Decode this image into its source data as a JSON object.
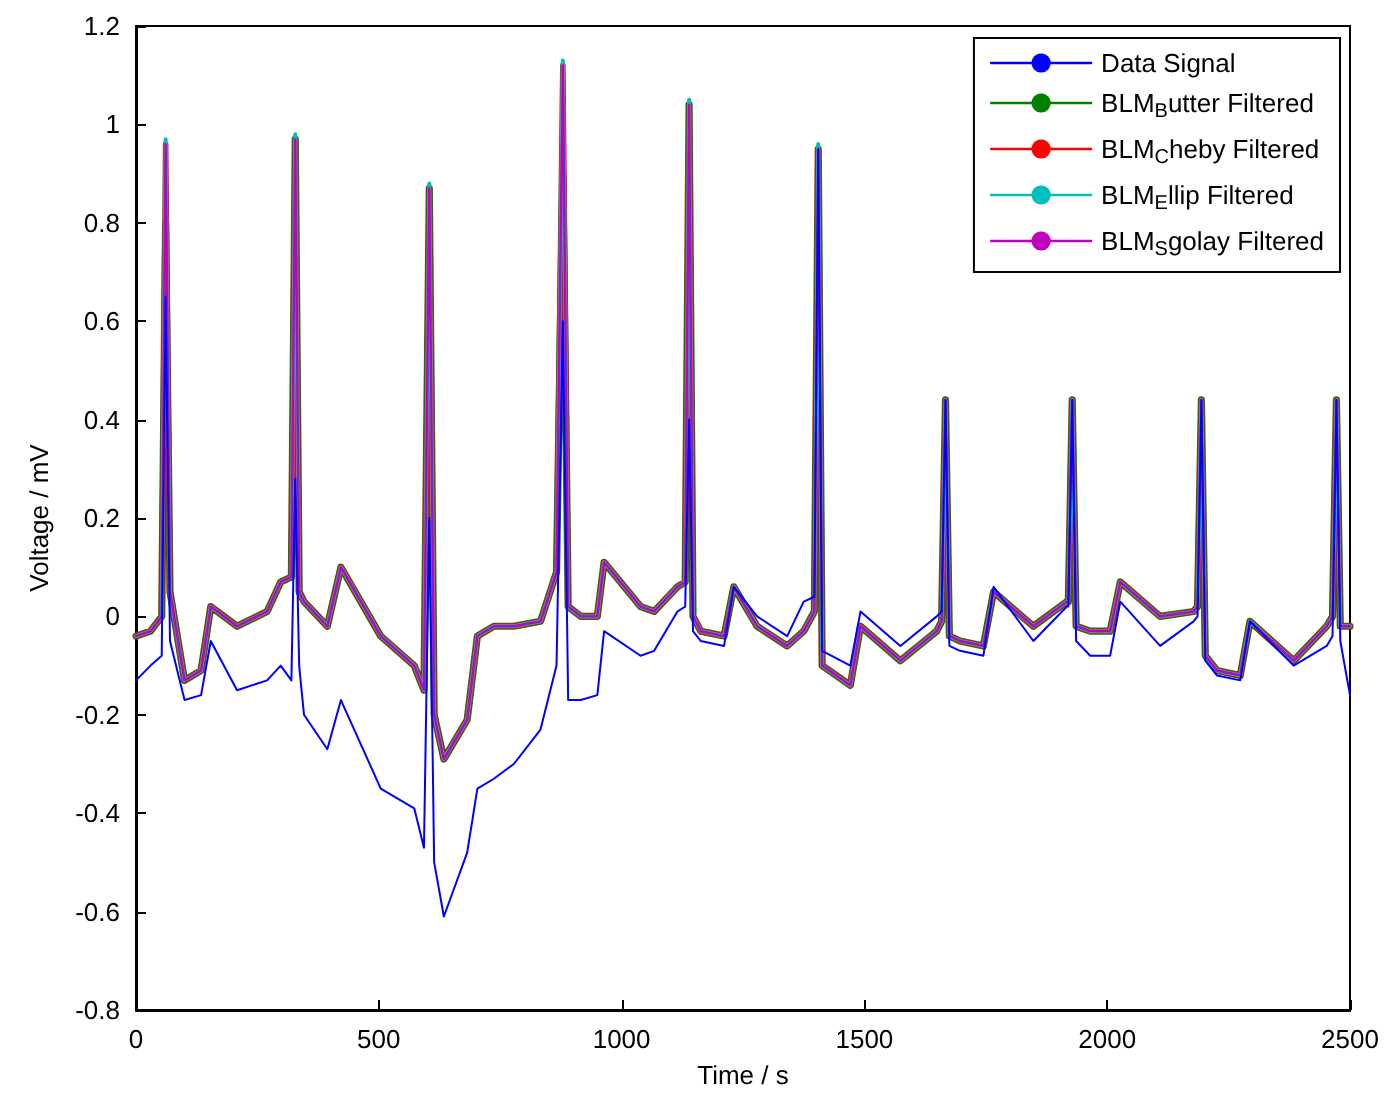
{
  "chart_data": {
    "type": "line",
    "xlabel": "Time / s",
    "ylabel": "Voltage / mV",
    "x": [
      0,
      30,
      53,
      61,
      70,
      100,
      134,
      154,
      208,
      270,
      298,
      320,
      328,
      336,
      346,
      394,
      422,
      504,
      573,
      593,
      604,
      614,
      634,
      682,
      703,
      737,
      778,
      833,
      866,
      879,
      890,
      916,
      950,
      964,
      1039,
      1067,
      1115,
      1131,
      1139,
      1147,
      1163,
      1211,
      1231,
      1279,
      1341,
      1375,
      1397,
      1405,
      1413,
      1471,
      1492,
      1574,
      1649,
      1659,
      1667,
      1675,
      1697,
      1745,
      1766,
      1848,
      1917,
      1920,
      1928,
      1936,
      1965,
      2006,
      2027,
      2109,
      2178,
      2186,
      2194,
      2202,
      2226,
      2274,
      2294,
      2384,
      2452,
      2464,
      2472,
      2480,
      2500
    ],
    "series": [
      {
        "name": "Data Signal",
        "color": "#0000ff",
        "values": [
          -0.13,
          -0.1,
          -0.08,
          0.65,
          -0.05,
          -0.17,
          -0.16,
          -0.05,
          -0.15,
          -0.13,
          -0.1,
          -0.13,
          0.28,
          -0.1,
          -0.2,
          -0.27,
          -0.17,
          -0.35,
          -0.39,
          -0.47,
          0.2,
          -0.5,
          -0.61,
          -0.48,
          -0.35,
          -0.33,
          -0.3,
          -0.23,
          -0.1,
          0.6,
          -0.17,
          -0.17,
          -0.16,
          -0.03,
          -0.08,
          -0.07,
          0.01,
          0.02,
          0.4,
          -0.03,
          -0.05,
          -0.06,
          0.06,
          0,
          -0.04,
          0.03,
          0.04,
          0.95,
          -0.07,
          -0.1,
          0.01,
          -0.06,
          0,
          0.01,
          0.44,
          -0.06,
          -0.07,
          -0.08,
          0.06,
          -0.05,
          0.02,
          0.02,
          0.44,
          -0.05,
          -0.08,
          -0.08,
          0.03,
          -0.06,
          -0.01,
          0,
          0.44,
          -0.09,
          -0.12,
          -0.13,
          -0.01,
          -0.1,
          -0.06,
          -0.04,
          0.44,
          -0.05,
          -0.16
        ]
      },
      {
        "name": "BLM$_{B}$utter Filtered",
        "color": "#008000",
        "values": [
          -0.04,
          -0.03,
          0,
          0.8,
          0.05,
          -0.13,
          -0.11,
          0.02,
          -0.02,
          0.01,
          0.07,
          0.08,
          0.97,
          0.05,
          0.03,
          -0.02,
          0.1,
          -0.04,
          -0.1,
          -0.15,
          0.87,
          -0.2,
          -0.29,
          -0.21,
          -0.04,
          -0.02,
          -0.02,
          -0.01,
          0.09,
          0.9,
          0.02,
          0,
          0,
          0.11,
          0.02,
          0.01,
          0.06,
          0.07,
          1.04,
          0,
          -0.03,
          -0.04,
          0.06,
          -0.02,
          -0.06,
          -0.03,
          0.01,
          0.95,
          -0.1,
          -0.14,
          -0.02,
          -0.09,
          -0.03,
          -0.01,
          0.44,
          -0.04,
          -0.05,
          -0.06,
          0.05,
          -0.02,
          0.03,
          0.03,
          0.44,
          -0.02,
          -0.03,
          -0.03,
          0.07,
          0,
          0.01,
          0.02,
          0.44,
          -0.08,
          -0.11,
          -0.12,
          -0.01,
          -0.09,
          -0.02,
          0,
          0.44,
          -0.02,
          -0.02
        ]
      },
      {
        "name": "BLM$_{C}$heby Filtered",
        "color": "#ff0000",
        "values": [
          -0.04,
          -0.03,
          0,
          0.96,
          0.05,
          -0.13,
          -0.11,
          0.02,
          -0.02,
          0.01,
          0.07,
          0.08,
          0.97,
          0.05,
          0.03,
          -0.02,
          0.1,
          -0.04,
          -0.1,
          -0.15,
          0.87,
          -0.2,
          -0.29,
          -0.21,
          -0.04,
          -0.02,
          -0.02,
          -0.01,
          0.09,
          1.12,
          0.02,
          0,
          0,
          0.11,
          0.02,
          0.01,
          0.06,
          0.07,
          1.04,
          0,
          -0.03,
          -0.04,
          0.06,
          -0.02,
          -0.06,
          -0.03,
          0.01,
          0.95,
          -0.1,
          -0.14,
          -0.02,
          -0.09,
          -0.03,
          -0.01,
          0.44,
          -0.04,
          -0.05,
          -0.06,
          0.05,
          -0.02,
          0.03,
          0.03,
          0.44,
          -0.02,
          -0.03,
          -0.03,
          0.07,
          0,
          0.01,
          0.02,
          0.44,
          -0.08,
          -0.11,
          -0.12,
          -0.01,
          -0.09,
          -0.02,
          0,
          0.44,
          -0.02,
          -0.02
        ]
      },
      {
        "name": "BLM$_{E}$llip Filtered",
        "color": "#00bfbf",
        "values": [
          -0.04,
          -0.03,
          0,
          0.97,
          0.05,
          -0.13,
          -0.11,
          0.02,
          -0.02,
          0.01,
          0.07,
          0.08,
          0.98,
          0.05,
          0.03,
          -0.02,
          0.1,
          -0.04,
          -0.1,
          -0.15,
          0.88,
          -0.2,
          -0.29,
          -0.21,
          -0.04,
          -0.02,
          -0.02,
          -0.01,
          0.09,
          1.13,
          0.02,
          0,
          0,
          0.11,
          0.02,
          0.01,
          0.06,
          0.07,
          1.05,
          0,
          -0.03,
          -0.04,
          0.06,
          -0.02,
          -0.06,
          -0.03,
          0.01,
          0.96,
          -0.1,
          -0.14,
          -0.02,
          -0.09,
          -0.03,
          -0.01,
          0.44,
          -0.04,
          -0.05,
          -0.06,
          0.05,
          -0.02,
          0.03,
          0.03,
          0.44,
          -0.02,
          -0.03,
          -0.03,
          0.07,
          0,
          0.01,
          0.02,
          0.44,
          -0.08,
          -0.11,
          -0.12,
          -0.01,
          -0.09,
          -0.02,
          0,
          0.44,
          -0.02,
          -0.02
        ]
      },
      {
        "name": "BLM$_{S}$golay Filtered",
        "color": "#bf00bf",
        "values": [
          -0.04,
          -0.03,
          0,
          0.96,
          0.05,
          -0.13,
          -0.11,
          0.02,
          -0.02,
          0.01,
          0.07,
          0.08,
          0.97,
          0.05,
          0.03,
          -0.02,
          0.1,
          -0.04,
          -0.1,
          -0.15,
          0.87,
          -0.2,
          -0.29,
          -0.21,
          -0.04,
          -0.02,
          -0.02,
          -0.01,
          0.09,
          1.12,
          0.02,
          0,
          0,
          0.11,
          0.02,
          0.01,
          0.06,
          0.07,
          1.04,
          0,
          -0.03,
          -0.04,
          0.06,
          -0.02,
          -0.06,
          -0.03,
          0.01,
          0.95,
          -0.1,
          -0.14,
          -0.02,
          -0.09,
          -0.03,
          -0.01,
          0.44,
          -0.04,
          -0.05,
          -0.06,
          0.05,
          -0.02,
          0.03,
          0.03,
          0.44,
          -0.02,
          -0.03,
          -0.03,
          0.07,
          0,
          0.01,
          0.02,
          0.44,
          -0.08,
          -0.11,
          -0.12,
          -0.01,
          -0.09,
          -0.02,
          0,
          0.44,
          -0.02,
          -0.02
        ]
      }
    ],
    "xlim": [
      0,
      2500
    ],
    "xticks": [
      0,
      500,
      1000,
      1500,
      2000,
      2500
    ],
    "ylim": [
      -0.8,
      1.2
    ],
    "yticks": [
      -0.8,
      -0.6,
      -0.4,
      -0.2,
      0,
      0.2,
      0.4,
      0.6,
      0.8,
      1,
      1.2
    ],
    "grid": false,
    "legend": "top right",
    "marker": "none",
    "line_style": "solid"
  }
}
